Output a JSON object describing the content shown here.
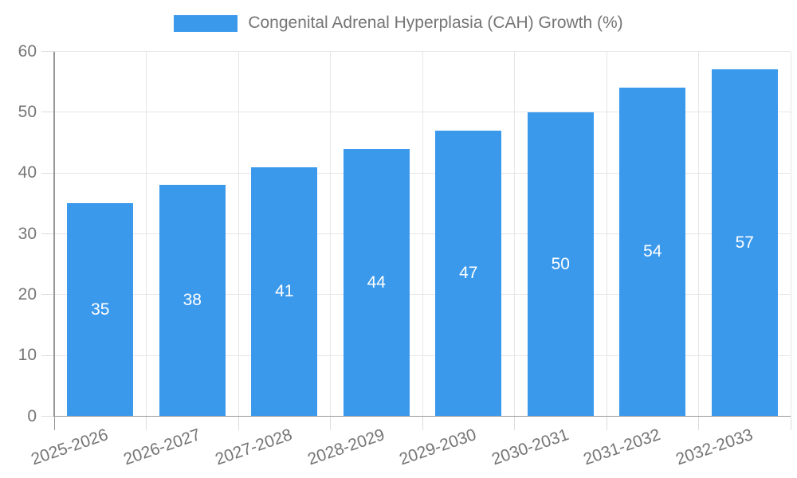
{
  "chart_data": {
    "type": "bar",
    "title": "Congenital Adrenal Hyperplasia (CAH) Growth (%)",
    "categories": [
      "2025-2026",
      "2026-2027",
      "2027-2028",
      "2028-2029",
      "2029-2030",
      "2030-2031",
      "2031-2032",
      "2032-2033"
    ],
    "values": [
      35,
      38,
      41,
      44,
      47,
      50,
      54,
      57
    ],
    "series": [
      {
        "name": "Congenital Adrenal Hyperplasia (CAH) Growth (%)",
        "values": [
          35,
          38,
          41,
          44,
          47,
          50,
          54,
          57
        ]
      }
    ],
    "xlabel": "",
    "ylabel": "",
    "ylim": [
      0,
      60
    ],
    "yticks": [
      0,
      10,
      20,
      30,
      40,
      50,
      60
    ],
    "grid": true,
    "legend_position": "top",
    "colors": {
      "bar": "#3b99ec",
      "value_label": "#ffffff",
      "axis_text": "#757575",
      "grid_line": "#e6e6e6",
      "tick_mark": "#dcdcdc",
      "axis_line": "#979797"
    }
  }
}
